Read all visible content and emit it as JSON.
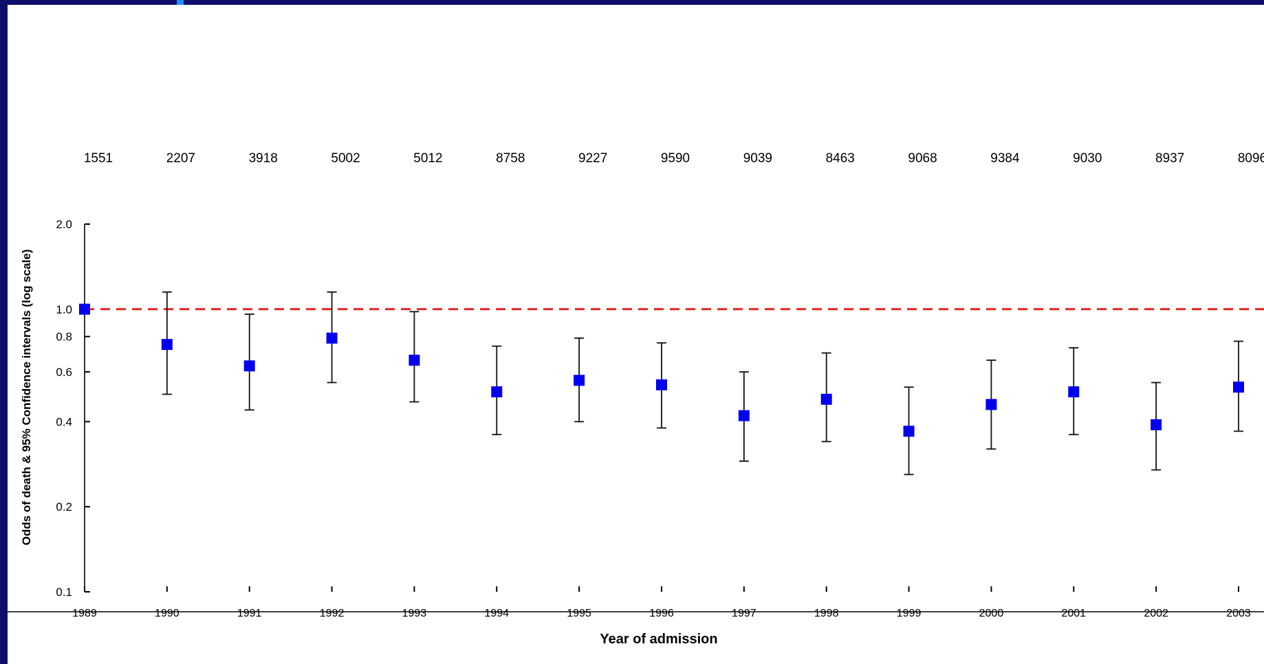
{
  "slide": {
    "frame_color": "#0f0f6b",
    "accent_color": "#1f8fff"
  },
  "chart_data": {
    "type": "scatter",
    "xlabel": "Year of admission",
    "ylabel": "Odds of death & 95% Confidence intervals (log scale)",
    "y_scale": "log",
    "ylim": [
      0.1,
      2.0
    ],
    "y_ticks": [
      {
        "value": 0.1,
        "label": "0.1"
      },
      {
        "value": 0.2,
        "label": "0.2"
      },
      {
        "value": 0.4,
        "label": "0.4"
      },
      {
        "value": 0.6,
        "label": "0.6"
      },
      {
        "value": 0.8,
        "label": "0.8"
      },
      {
        "value": 1.0,
        "label": "1.0"
      },
      {
        "value": 2.0,
        "label": "2.0"
      }
    ],
    "x_tick_labels": [
      "1989",
      "1990",
      "1991",
      "1992",
      "1993",
      "1994",
      "1995",
      "1996",
      "1997",
      "1998",
      "1999",
      "2000",
      "2001",
      "2002",
      "2003"
    ],
    "n_labels": [
      "1551",
      "2207",
      "3918",
      "5002",
      "5012",
      "8758",
      "9227",
      "9590",
      "9039",
      "8463",
      "9068",
      "9384",
      "9030",
      "8937",
      "8096"
    ],
    "reference_line": {
      "y": 1.0,
      "color": "#e8221c",
      "style": "dashed"
    },
    "marker_color": "#0000ee",
    "series": [
      {
        "points": [
          {
            "x": "1989",
            "y": 1.0,
            "lo": null,
            "hi": null
          },
          {
            "x": "1990",
            "y": 0.75,
            "lo": 0.5,
            "hi": 1.15
          },
          {
            "x": "1991",
            "y": 0.63,
            "lo": 0.44,
            "hi": 0.96
          },
          {
            "x": "1992",
            "y": 0.79,
            "lo": 0.55,
            "hi": 1.15
          },
          {
            "x": "1993",
            "y": 0.66,
            "lo": 0.47,
            "hi": 0.98
          },
          {
            "x": "1994",
            "y": 0.51,
            "lo": 0.36,
            "hi": 0.74
          },
          {
            "x": "1995",
            "y": 0.56,
            "lo": 0.4,
            "hi": 0.79
          },
          {
            "x": "1996",
            "y": 0.54,
            "lo": 0.38,
            "hi": 0.76
          },
          {
            "x": "1997",
            "y": 0.42,
            "lo": 0.29,
            "hi": 0.6
          },
          {
            "x": "1998",
            "y": 0.48,
            "lo": 0.34,
            "hi": 0.7
          },
          {
            "x": "1999",
            "y": 0.37,
            "lo": 0.26,
            "hi": 0.53
          },
          {
            "x": "2000",
            "y": 0.46,
            "lo": 0.32,
            "hi": 0.66
          },
          {
            "x": "2001",
            "y": 0.51,
            "lo": 0.36,
            "hi": 0.73
          },
          {
            "x": "2002",
            "y": 0.39,
            "lo": 0.27,
            "hi": 0.55
          },
          {
            "x": "2003",
            "y": 0.53,
            "lo": 0.37,
            "hi": 0.77
          }
        ]
      }
    ]
  }
}
